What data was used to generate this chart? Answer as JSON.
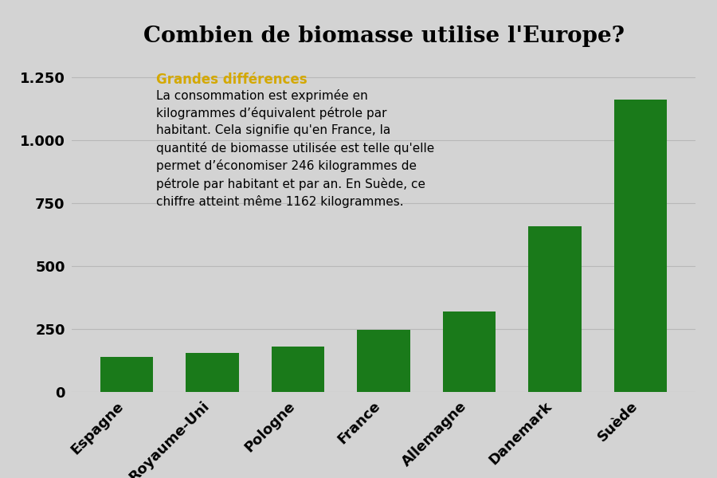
{
  "title": "Combien de biomasse utilise l'Europe?",
  "categories": [
    "Espagne",
    "Royaume-Uni",
    "Pologne",
    "France",
    "Allemagne",
    "Danemark",
    "Suède"
  ],
  "values": [
    140,
    155,
    180,
    246,
    320,
    660,
    1162
  ],
  "bar_color": "#1a7a1a",
  "background_color": "#d3d3d3",
  "title_fontsize": 20,
  "annotation_title": "Grandes différences",
  "annotation_title_color": "#d4a800",
  "annotation_title_fontsize": 12,
  "annotation_text": "La consommation est exprimée en\nkilogrammes d’équivalent pétrole par\nhabitant. Cela signifie qu'en France, la\nquantité de biomasse utilisée est telle qu'elle\npermet d’économiser 246 kilogrammes de\npétrole par habitant et par an. En Suède, ce\nchiffre atteint même 1162 kilogrammes.",
  "annotation_fontsize": 11,
  "yticks": [
    0,
    250,
    500,
    750,
    1000,
    1250
  ],
  "ytick_labels": [
    "0",
    "250",
    "500",
    "750",
    "1.000",
    "1.250"
  ],
  "ylim": [
    0,
    1330
  ],
  "grid_color": "#b0b0b0",
  "tick_fontsize": 13
}
